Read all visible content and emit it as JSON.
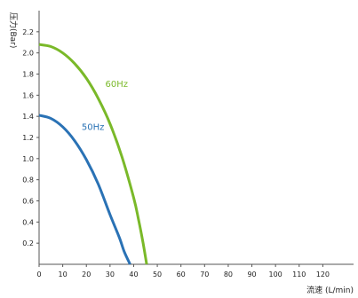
{
  "chart_data": {
    "type": "line",
    "title": "",
    "xlabel": "流速 (L/min)",
    "ylabel": "压力(Bar)",
    "xlim": [
      0,
      130
    ],
    "ylim": [
      0,
      2.4
    ],
    "x_ticks": [
      "0",
      "10",
      "20",
      "30",
      "40",
      "50",
      "60",
      "70",
      "80",
      "90",
      "100",
      "110",
      "120"
    ],
    "y_ticks": [
      "0.2",
      "0.4",
      "0.6",
      "0.8",
      "1.0",
      "1.2",
      "1.4",
      "1.6",
      "1.8",
      "2.0",
      "2.2"
    ],
    "grid": false,
    "series": [
      {
        "name": "60Hz",
        "color": "#7ab929",
        "x": [
          0,
          5,
          10,
          15,
          20,
          25,
          30,
          35,
          40,
          42,
          44,
          45.5
        ],
        "y": [
          2.08,
          2.06,
          2.0,
          1.9,
          1.76,
          1.57,
          1.33,
          1.02,
          0.63,
          0.43,
          0.2,
          0.0
        ]
      },
      {
        "name": "50Hz",
        "color": "#2a72b5",
        "x": [
          0,
          5,
          10,
          15,
          20,
          25,
          30,
          34,
          36,
          38.5
        ],
        "y": [
          1.41,
          1.38,
          1.3,
          1.17,
          0.99,
          0.76,
          0.47,
          0.25,
          0.12,
          0.0
        ]
      }
    ]
  }
}
